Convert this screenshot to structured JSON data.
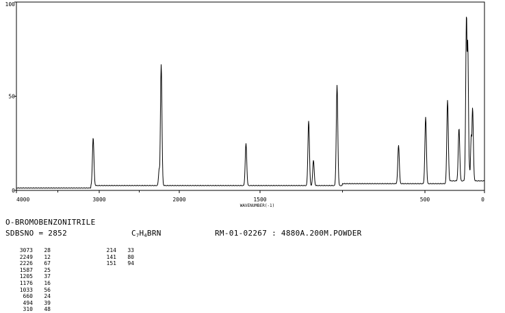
{
  "compound_name": "O-BROMOBENZONITRILE",
  "sdbs_no": "SDBSNO = 2852",
  "formula": {
    "c": "C",
    "c_n": "7",
    "h": "H",
    "h_n": "4",
    "rest": "BRN"
  },
  "measurement": "RM-01-02267 : 4880A.200M.POWDER",
  "peaks_left": [
    {
      "wavenumber": "3073",
      "intensity": "28"
    },
    {
      "wavenumber": "2249",
      "intensity": "12"
    },
    {
      "wavenumber": "2226",
      "intensity": "67"
    },
    {
      "wavenumber": "1587",
      "intensity": "25"
    },
    {
      "wavenumber": "1205",
      "intensity": "37"
    },
    {
      "wavenumber": "1176",
      "intensity": "16"
    },
    {
      "wavenumber": "1033",
      "intensity": "56"
    },
    {
      "wavenumber": "660",
      "intensity": "24"
    },
    {
      "wavenumber": "494",
      "intensity": "39"
    },
    {
      "wavenumber": "310",
      "intensity": "48"
    }
  ],
  "peaks_right": [
    {
      "wavenumber": "214",
      "intensity": "33"
    },
    {
      "wavenumber": "141",
      "intensity": "80"
    },
    {
      "wavenumber": "151",
      "intensity": "94"
    }
  ],
  "chart_data": {
    "type": "line",
    "title": "",
    "xlabel": "WAVENUMBER(-1)",
    "ylabel": "",
    "xlim": [
      4000,
      0
    ],
    "ylim": [
      0,
      100
    ],
    "x_ticks": [
      "4000",
      "3000",
      "2000",
      "1500",
      "500",
      "0"
    ],
    "x_tick_values": [
      4000,
      3000,
      2000,
      1500,
      500,
      0
    ],
    "y_ticks": [
      "0",
      "50",
      "100"
    ],
    "y_tick_values": [
      0,
      50,
      100
    ],
    "grid": false,
    "series": [
      {
        "x": [
          4000,
          3200,
          3090,
          3073,
          3060,
          2300,
          2249,
          2240,
          2226,
          2215,
          1600,
          1587,
          1570,
          1330,
          1205,
          1195,
          1176,
          1165,
          1110,
          1033,
          1020,
          660,
          650,
          494,
          480,
          430,
          310,
          300,
          214,
          200,
          151,
          141,
          130,
          110,
          100
        ],
        "y": [
          1,
          1.5,
          2,
          28,
          2,
          2.5,
          12,
          3,
          67,
          3,
          3,
          25,
          3,
          4,
          37,
          6,
          16,
          5,
          5,
          56,
          5,
          24,
          4,
          39,
          5,
          5,
          48,
          5,
          33,
          8,
          94,
          80,
          15,
          30,
          44
        ]
      }
    ]
  }
}
